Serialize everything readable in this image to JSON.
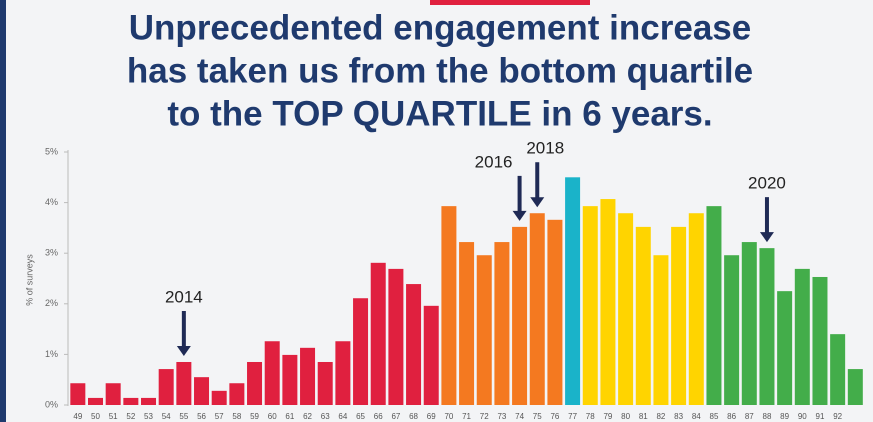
{
  "chart_data": {
    "type": "bar",
    "title": [
      "Unprecedented engagement increase",
      "has taken us from the bottom quartile",
      "to the TOP QUARTILE in 6 years."
    ],
    "y_label": "% of surveys",
    "categories": [
      "49",
      "50",
      "51",
      "52",
      "53",
      "54",
      "55",
      "56",
      "57",
      "58",
      "59",
      "60",
      "61",
      "62",
      "63",
      "64",
      "65",
      "66",
      "67",
      "68",
      "69",
      "70",
      "71",
      "72",
      "73",
      "74",
      "75",
      "76",
      "77",
      "78",
      "79",
      "80",
      "81",
      "82",
      "83",
      "84",
      "85",
      "86",
      "87",
      "88",
      "89",
      "90",
      "91",
      "92",
      null
    ],
    "values": [
      0.43,
      0.14,
      0.43,
      0.14,
      0.14,
      0.71,
      0.85,
      0.55,
      0.28,
      0.43,
      0.85,
      1.26,
      0.99,
      1.13,
      0.85,
      1.26,
      2.11,
      2.81,
      2.69,
      2.39,
      1.96,
      3.93,
      3.22,
      2.96,
      3.22,
      3.52,
      3.79,
      3.66,
      4.5,
      3.93,
      4.07,
      3.79,
      3.52,
      2.96,
      3.52,
      3.79,
      3.93,
      2.96,
      3.22,
      3.1,
      2.25,
      2.69,
      2.53,
      1.4,
      0.71
    ],
    "colors": [
      "#e0203f",
      "#e0203f",
      "#e0203f",
      "#e0203f",
      "#e0203f",
      "#e0203f",
      "#e0203f",
      "#e0203f",
      "#e0203f",
      "#e0203f",
      "#e0203f",
      "#e0203f",
      "#e0203f",
      "#e0203f",
      "#e0203f",
      "#e0203f",
      "#e0203f",
      "#e0203f",
      "#e0203f",
      "#e0203f",
      "#e0203f",
      "#f47920",
      "#f47920",
      "#f47920",
      "#f47920",
      "#f47920",
      "#f47920",
      "#f47920",
      "#1ab3c9",
      "#ffd400",
      "#ffd400",
      "#ffd400",
      "#ffd400",
      "#ffd400",
      "#ffd400",
      "#ffd400",
      "#43ad4a",
      "#43ad4a",
      "#43ad4a",
      "#43ad4a",
      "#43ad4a",
      "#43ad4a",
      "#43ad4a",
      "#43ad4a",
      "#43ad4a"
    ],
    "ylim": [
      0,
      5
    ],
    "yticks": [
      {
        "value": 0,
        "label": "0%"
      },
      {
        "value": 1,
        "label": "1%"
      },
      {
        "value": 2,
        "label": "2%"
      },
      {
        "value": 3,
        "label": "3%"
      },
      {
        "value": 4,
        "label": "4%"
      },
      {
        "value": 5,
        "label": "5%"
      }
    ],
    "annotations": [
      {
        "text": "2014",
        "category": "55"
      },
      {
        "text": "2016",
        "category": "74"
      },
      {
        "text": "2018",
        "category": "75"
      },
      {
        "text": "2020",
        "category": "88"
      }
    ],
    "arrow_color": "#1f2a55"
  }
}
